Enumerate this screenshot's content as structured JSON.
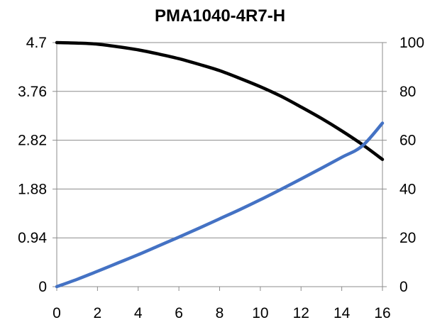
{
  "chart_data": {
    "type": "line",
    "title": "PMA1040-4R7-H",
    "xlabel": "",
    "ylabel": "",
    "y2label": "",
    "xlim": [
      0,
      16
    ],
    "ylim": [
      0,
      4.7
    ],
    "y2lim": [
      0,
      100
    ],
    "x_ticks": [
      "0",
      "2",
      "4",
      "6",
      "8",
      "10",
      "12",
      "14",
      "16"
    ],
    "y_ticks": [
      "0",
      "0.94",
      "1.88",
      "2.82",
      "3.76",
      "4.7"
    ],
    "y2_ticks": [
      "0",
      "20",
      "40",
      "60",
      "80",
      "100"
    ],
    "grid": "horizontal",
    "legend": "none",
    "series": [
      {
        "axis": "left",
        "color": "#000000",
        "x": [
          0,
          1,
          2,
          3,
          4,
          5,
          6,
          7,
          8,
          9,
          10,
          11,
          12,
          13,
          14,
          15,
          16
        ],
        "values": [
          4.7,
          4.69,
          4.67,
          4.62,
          4.56,
          4.48,
          4.39,
          4.28,
          4.16,
          4.01,
          3.85,
          3.67,
          3.46,
          3.24,
          3.0,
          2.74,
          2.45
        ]
      },
      {
        "axis": "right",
        "color": "#4472C4",
        "x": [
          0,
          1,
          2,
          3,
          4,
          5,
          6,
          7,
          8,
          9,
          10,
          11,
          12,
          13,
          14,
          15,
          16
        ],
        "values": [
          0,
          3.0,
          6.3,
          9.7,
          13.1,
          16.7,
          20.3,
          24.0,
          27.8,
          31.6,
          35.6,
          39.8,
          44.1,
          48.5,
          53.0,
          57.6,
          67.0
        ]
      }
    ]
  }
}
